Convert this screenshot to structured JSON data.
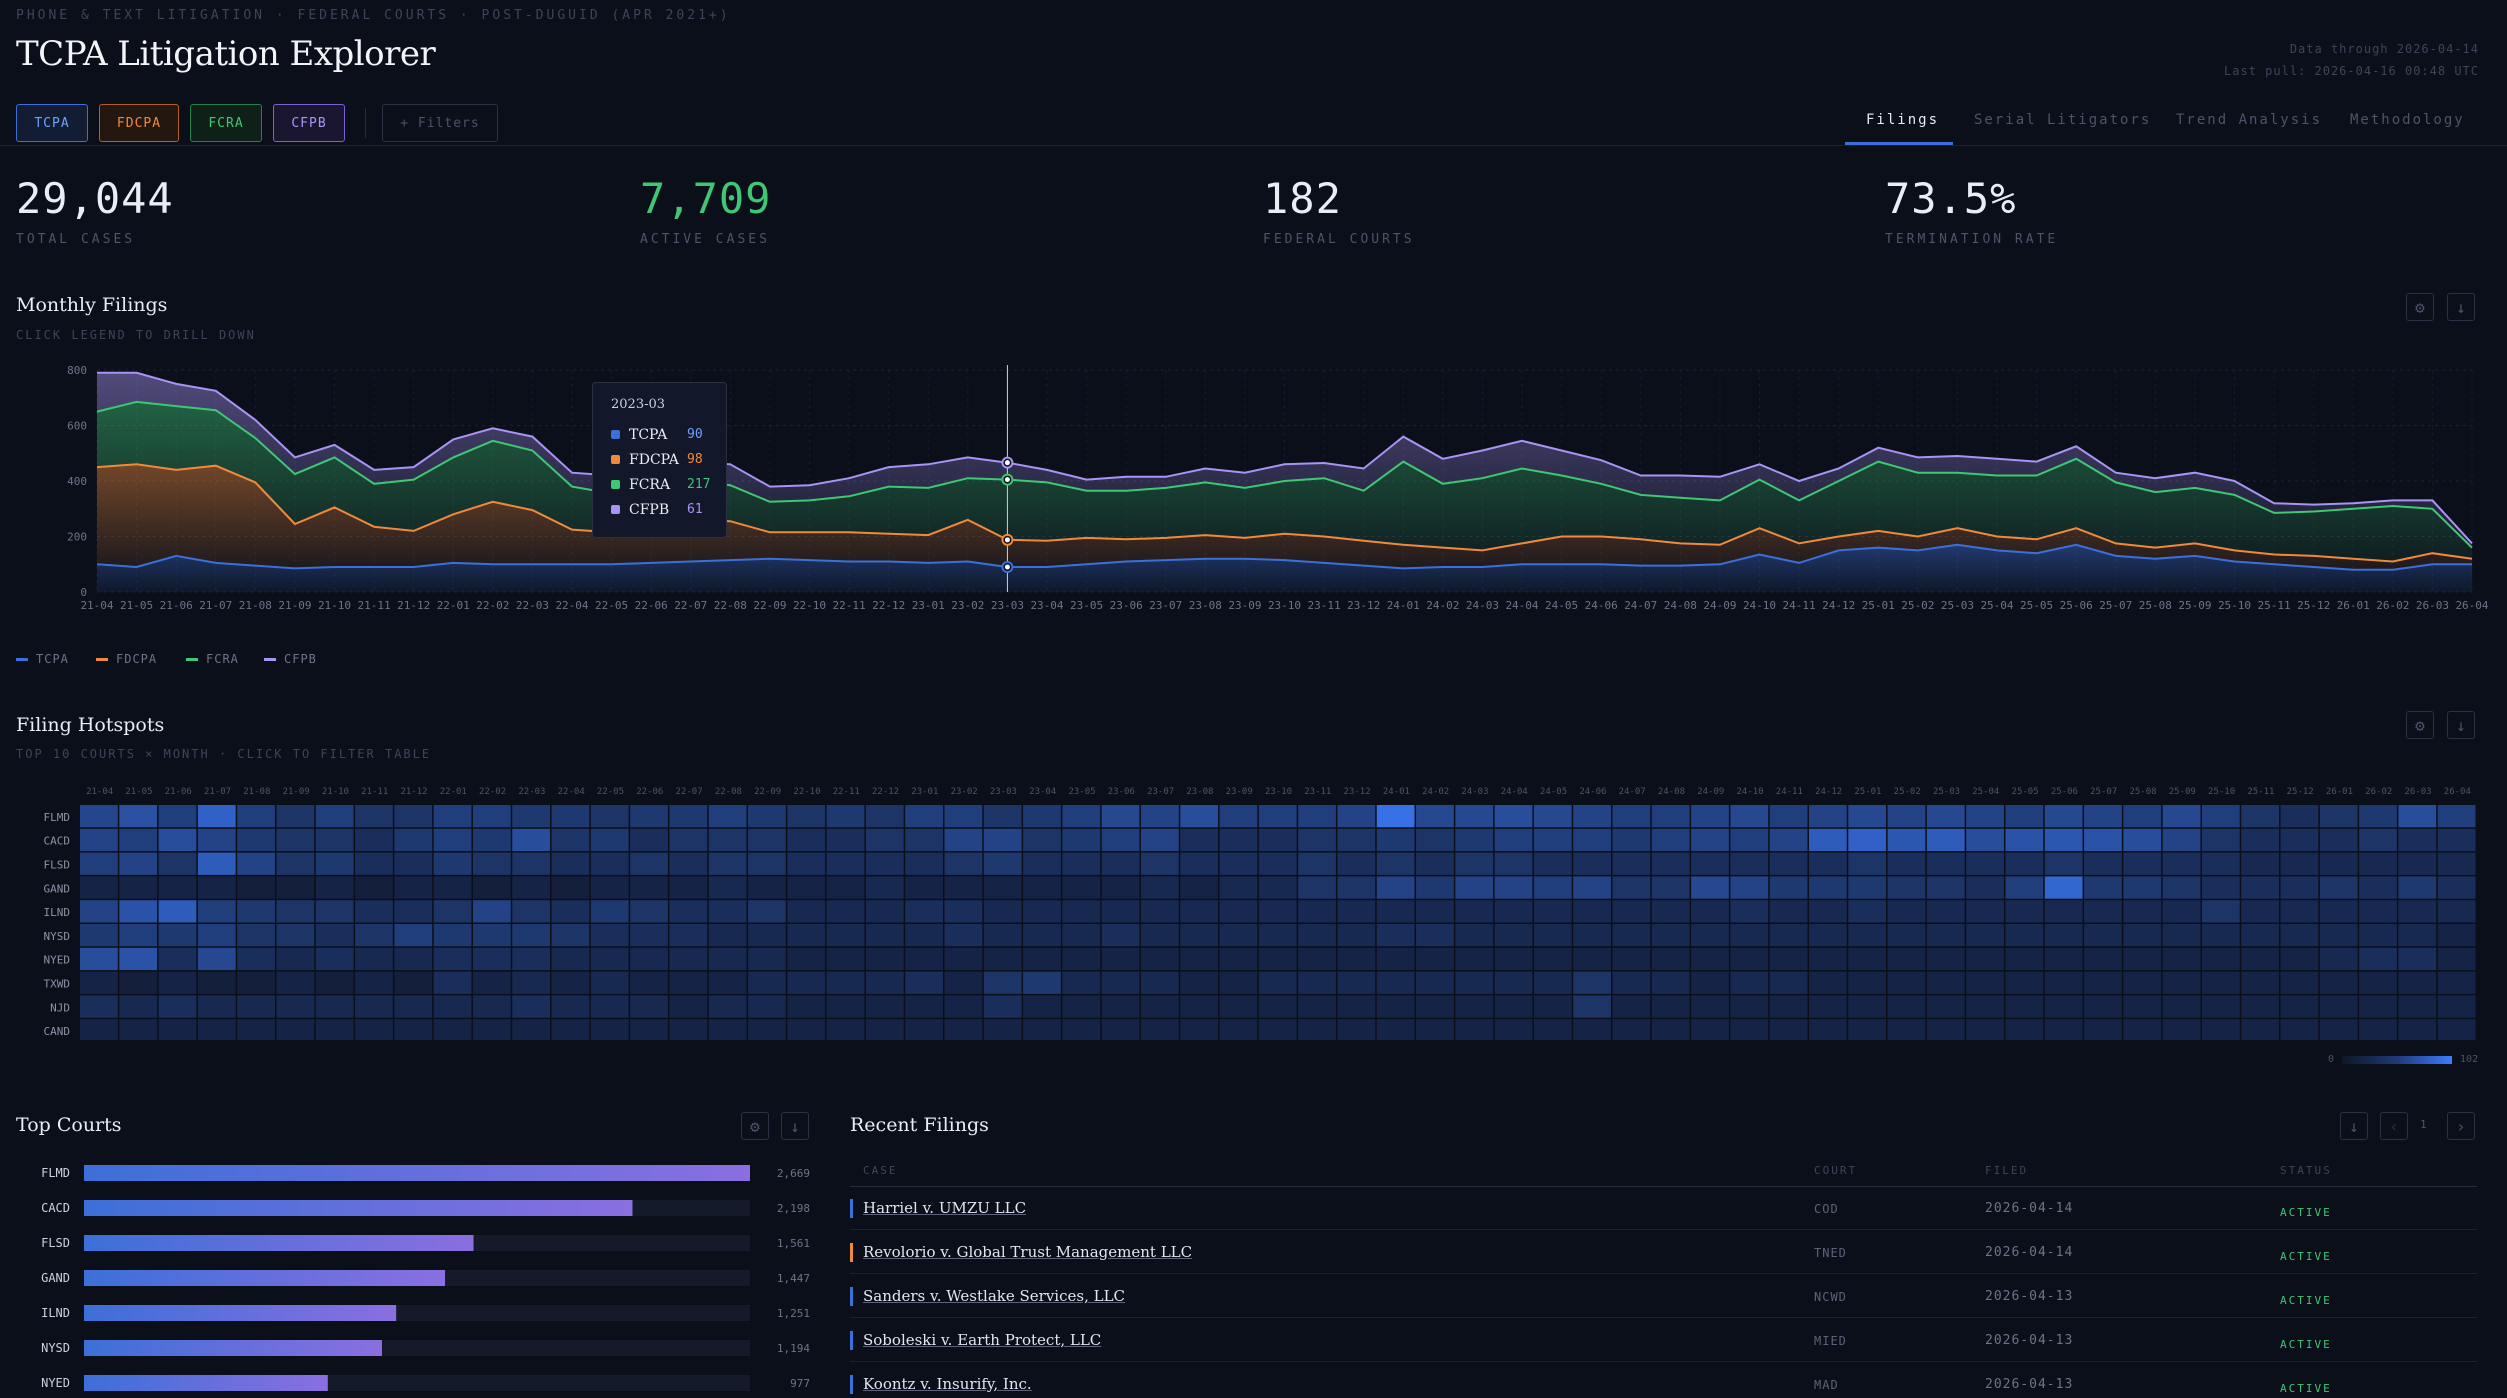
{
  "header": {
    "breadcrumb": "PHONE & TEXT LITIGATION · FEDERAL COURTS · POST-DUGUID (APR 2021+)",
    "title": "TCPA Litigation Explorer",
    "data_through": "Data through 2026-04-14",
    "last_pull": "Last pull: 2026-04-16 00:48 UTC"
  },
  "chips": [
    {
      "label": "TCPA",
      "color": "#3d6fd8"
    },
    {
      "label": "FDCPA",
      "color": "#f08a3b"
    },
    {
      "label": "FCRA",
      "color": "#3ec774"
    },
    {
      "label": "CFPB",
      "color": "#a894f5"
    }
  ],
  "filters_label": "+ Filters",
  "tabs": [
    "Filings",
    "Serial Litigators",
    "Trend Analysis",
    "Methodology"
  ],
  "active_tab": "Filings",
  "kpis": [
    {
      "value": "29,044",
      "label": "TOTAL CASES"
    },
    {
      "value": "7,709",
      "label": "ACTIVE CASES"
    },
    {
      "value": "182",
      "label": "FEDERAL COURTS"
    },
    {
      "value": "73.5%",
      "label": "TERMINATION RATE"
    }
  ],
  "monthly": {
    "title": "Monthly Filings",
    "subtitle": "CLICK LEGEND TO DRILL DOWN",
    "tooltip": {
      "period": "2023-03",
      "rows": [
        {
          "name": "TCPA",
          "value": "90"
        },
        {
          "name": "FDCPA",
          "value": "98"
        },
        {
          "name": "FCRA",
          "value": "217"
        },
        {
          "name": "CFPB",
          "value": "61"
        }
      ]
    },
    "legend": [
      "TCPA",
      "FDCPA",
      "FCRA",
      "CFPB"
    ]
  },
  "hotspots": {
    "title": "Filing Hotspots",
    "subtitle": "TOP 10 COURTS × MONTH · CLICK TO FILTER TABLE",
    "courts": [
      "FLMD",
      "CACD",
      "FLSD",
      "GAND",
      "ILND",
      "NYSD",
      "NYED",
      "TXWD",
      "NJD",
      "CAND"
    ],
    "scale_min": "0",
    "scale_max": "102"
  },
  "top_courts": {
    "title": "Top Courts",
    "rows": [
      {
        "court": "FLMD",
        "count": "2,669",
        "value": 2669
      },
      {
        "court": "CACD",
        "count": "2,198",
        "value": 2198
      },
      {
        "court": "FLSD",
        "count": "1,561",
        "value": 1561
      },
      {
        "court": "GAND",
        "count": "1,447",
        "value": 1447
      },
      {
        "court": "ILND",
        "count": "1,251",
        "value": 1251
      },
      {
        "court": "NYSD",
        "count": "1,194",
        "value": 1194
      },
      {
        "court": "NYED",
        "count": "977",
        "value": 977
      }
    ]
  },
  "recent": {
    "title": "Recent Filings",
    "page": "1",
    "columns": [
      "CASE",
      "COURT",
      "FILED",
      "STATUS"
    ],
    "rows": [
      {
        "case": "Harriel v. UMZU LLC",
        "court": "COD",
        "filed": "2026-04-14",
        "status": "ACTIVE"
      },
      {
        "case": "Revolorio v. Global Trust Management LLC",
        "court": "TNED",
        "filed": "2026-04-14",
        "status": "ACTIVE"
      },
      {
        "case": "Sanders v. Westlake Services, LLC",
        "court": "NCWD",
        "filed": "2026-04-13",
        "status": "ACTIVE"
      },
      {
        "case": "Soboleski v. Earth Protect, LLC",
        "court": "MIED",
        "filed": "2026-04-13",
        "status": "ACTIVE"
      },
      {
        "case": "Koontz v. Insurify, Inc.",
        "court": "MAD",
        "filed": "2026-04-13",
        "status": "ACTIVE"
      }
    ]
  },
  "chart_data": [
    {
      "type": "area",
      "title": "Monthly Filings",
      "stacked": true,
      "ylim": [
        0,
        800
      ],
      "yticks": [
        0,
        200,
        400,
        600,
        800
      ],
      "x": [
        "21-04",
        "21-05",
        "21-06",
        "21-07",
        "21-08",
        "21-09",
        "21-10",
        "21-11",
        "21-12",
        "22-01",
        "22-02",
        "22-03",
        "22-04",
        "22-05",
        "22-06",
        "22-07",
        "22-08",
        "22-09",
        "22-10",
        "22-11",
        "22-12",
        "23-01",
        "23-02",
        "23-03",
        "23-04",
        "23-05",
        "23-06",
        "23-07",
        "23-08",
        "23-09",
        "23-10",
        "23-11",
        "23-12",
        "24-01",
        "24-02",
        "24-03",
        "24-04",
        "24-05",
        "24-06",
        "24-07",
        "24-08",
        "24-09",
        "24-10",
        "24-11",
        "24-12",
        "25-01",
        "25-02",
        "25-03",
        "25-04",
        "25-05",
        "25-06",
        "25-07",
        "25-08",
        "25-09",
        "25-10",
        "25-11",
        "25-12",
        "26-01",
        "26-02",
        "26-03",
        "26-04"
      ],
      "series": [
        {
          "name": "TCPA",
          "color": "#3d6fd8",
          "values": [
            100,
            90,
            130,
            105,
            95,
            85,
            90,
            90,
            90,
            105,
            100,
            100,
            100,
            100,
            105,
            110,
            115,
            120,
            115,
            110,
            110,
            105,
            110,
            90,
            90,
            100,
            110,
            115,
            120,
            120,
            115,
            105,
            95,
            85,
            90,
            90,
            100,
            100,
            100,
            95,
            95,
            100,
            135,
            105,
            150,
            160,
            150,
            170,
            150,
            140,
            170,
            130,
            120,
            130,
            110,
            100,
            90,
            80,
            80,
            100,
            100
          ]
        },
        {
          "name": "FDCPA",
          "color": "#f08a3b",
          "values": [
            350,
            370,
            310,
            350,
            300,
            160,
            215,
            145,
            130,
            175,
            225,
            195,
            125,
            115,
            120,
            150,
            140,
            95,
            100,
            105,
            100,
            100,
            150,
            98,
            95,
            95,
            80,
            80,
            85,
            75,
            95,
            95,
            90,
            85,
            70,
            60,
            75,
            100,
            100,
            95,
            80,
            70,
            95,
            70,
            50,
            60,
            50,
            60,
            50,
            50,
            60,
            45,
            40,
            45,
            40,
            35,
            40,
            40,
            30,
            40,
            20
          ]
        },
        {
          "name": "FCRA",
          "color": "#3ec774",
          "values": [
            200,
            225,
            230,
            200,
            160,
            180,
            180,
            155,
            185,
            205,
            220,
            215,
            155,
            140,
            150,
            145,
            130,
            110,
            115,
            130,
            170,
            170,
            150,
            217,
            210,
            170,
            175,
            180,
            190,
            180,
            190,
            210,
            180,
            300,
            230,
            260,
            270,
            220,
            190,
            160,
            165,
            160,
            175,
            155,
            200,
            250,
            230,
            200,
            220,
            230,
            250,
            220,
            200,
            200,
            200,
            150,
            160,
            180,
            200,
            160,
            40
          ]
        },
        {
          "name": "CFPB",
          "color": "#a894f5",
          "values": [
            140,
            105,
            80,
            70,
            65,
            60,
            45,
            50,
            45,
            65,
            45,
            50,
            50,
            65,
            55,
            65,
            75,
            55,
            55,
            65,
            70,
            85,
            75,
            61,
            45,
            40,
            50,
            40,
            50,
            55,
            60,
            55,
            80,
            90,
            90,
            100,
            100,
            90,
            85,
            70,
            80,
            85,
            55,
            70,
            45,
            50,
            55,
            60,
            60,
            50,
            45,
            35,
            50,
            55,
            50,
            35,
            25,
            20,
            20,
            30,
            15
          ]
        }
      ]
    },
    {
      "type": "heatmap",
      "title": "Filing Hotspots",
      "rows": [
        "FLMD",
        "CACD",
        "FLSD",
        "GAND",
        "ILND",
        "NYSD",
        "NYED",
        "TXWD",
        "NJD",
        "CAND"
      ],
      "columns": [
        "21-04",
        "21-05",
        "21-06",
        "21-07",
        "21-08",
        "21-09",
        "21-10",
        "21-11",
        "21-12",
        "22-01",
        "22-02",
        "22-03",
        "22-04",
        "22-05",
        "22-06",
        "22-07",
        "22-08",
        "22-09",
        "22-10",
        "22-11",
        "22-12",
        "23-01",
        "23-02",
        "23-03",
        "23-04",
        "23-05",
        "23-06",
        "23-07",
        "23-08",
        "23-09",
        "23-10",
        "23-11",
        "23-12",
        "24-01",
        "24-02",
        "24-03",
        "24-04",
        "24-05",
        "24-06",
        "24-07",
        "24-08",
        "24-09",
        "24-10",
        "24-11",
        "24-12",
        "25-01",
        "25-02",
        "25-03",
        "25-04",
        "25-05",
        "25-06",
        "25-07",
        "25-08",
        "25-09",
        "25-10",
        "25-11",
        "25-12",
        "26-01",
        "26-02",
        "26-03",
        "26-04"
      ],
      "range": [
        0,
        102
      ],
      "values": [
        [
          48,
          58,
          40,
          75,
          40,
          30,
          40,
          30,
          30,
          40,
          40,
          35,
          35,
          30,
          35,
          35,
          40,
          35,
          30,
          35,
          30,
          40,
          40,
          30,
          35,
          40,
          50,
          45,
          55,
          40,
          40,
          40,
          45,
          90,
          50,
          50,
          55,
          50,
          45,
          40,
          40,
          45,
          50,
          40,
          45,
          50,
          45,
          50,
          45,
          40,
          50,
          45,
          40,
          50,
          40,
          30,
          25,
          30,
          35,
          55,
          40
        ],
        [
          45,
          40,
          55,
          45,
          35,
          30,
          30,
          25,
          35,
          40,
          35,
          55,
          30,
          35,
          25,
          30,
          30,
          30,
          25,
          25,
          30,
          30,
          45,
          45,
          30,
          35,
          40,
          45,
          25,
          25,
          25,
          30,
          30,
          35,
          30,
          35,
          40,
          40,
          40,
          35,
          40,
          45,
          40,
          45,
          70,
          75,
          65,
          70,
          55,
          60,
          65,
          60,
          55,
          45,
          30,
          25,
          25,
          25,
          30,
          25,
          25
        ],
        [
          40,
          45,
          30,
          70,
          45,
          30,
          35,
          25,
          25,
          35,
          30,
          30,
          25,
          25,
          30,
          25,
          30,
          30,
          25,
          25,
          25,
          25,
          30,
          35,
          25,
          25,
          25,
          30,
          25,
          25,
          25,
          30,
          25,
          30,
          25,
          30,
          30,
          25,
          25,
          25,
          25,
          25,
          25,
          25,
          25,
          30,
          25,
          25,
          25,
          25,
          30,
          25,
          25,
          25,
          25,
          20,
          20,
          20,
          20,
          20,
          20
        ],
        [
          15,
          15,
          15,
          15,
          10,
          10,
          15,
          10,
          15,
          15,
          10,
          15,
          10,
          15,
          15,
          15,
          20,
          15,
          15,
          15,
          20,
          15,
          15,
          15,
          15,
          15,
          15,
          20,
          15,
          20,
          20,
          30,
          30,
          45,
          35,
          45,
          45,
          40,
          45,
          30,
          30,
          50,
          45,
          35,
          35,
          35,
          30,
          30,
          25,
          40,
          80,
          35,
          35,
          30,
          25,
          25,
          25,
          30,
          25,
          35,
          25
        ],
        [
          45,
          60,
          70,
          40,
          35,
          30,
          30,
          25,
          25,
          30,
          45,
          30,
          25,
          35,
          30,
          25,
          25,
          30,
          20,
          20,
          20,
          25,
          25,
          20,
          20,
          20,
          20,
          20,
          20,
          20,
          20,
          20,
          20,
          20,
          20,
          20,
          20,
          20,
          20,
          20,
          20,
          20,
          25,
          20,
          20,
          25,
          20,
          20,
          20,
          20,
          20,
          20,
          20,
          20,
          30,
          20,
          20,
          20,
          20,
          20,
          20
        ],
        [
          35,
          40,
          35,
          40,
          30,
          30,
          25,
          30,
          40,
          35,
          35,
          35,
          30,
          25,
          25,
          25,
          20,
          20,
          20,
          20,
          20,
          20,
          25,
          20,
          20,
          20,
          25,
          20,
          20,
          20,
          20,
          20,
          20,
          25,
          25,
          20,
          20,
          20,
          20,
          20,
          20,
          20,
          20,
          20,
          20,
          20,
          20,
          20,
          20,
          20,
          20,
          20,
          20,
          20,
          20,
          20,
          20,
          20,
          20,
          20,
          15
        ],
        [
          55,
          60,
          25,
          50,
          25,
          20,
          25,
          20,
          20,
          25,
          25,
          25,
          20,
          20,
          20,
          20,
          20,
          20,
          15,
          15,
          15,
          15,
          15,
          15,
          15,
          15,
          15,
          15,
          15,
          15,
          15,
          15,
          15,
          15,
          15,
          15,
          15,
          15,
          15,
          15,
          15,
          15,
          15,
          15,
          15,
          15,
          15,
          15,
          15,
          15,
          15,
          15,
          15,
          15,
          15,
          15,
          15,
          20,
          25,
          25,
          15
        ],
        [
          15,
          10,
          15,
          10,
          10,
          15,
          10,
          15,
          10,
          25,
          15,
          20,
          15,
          20,
          15,
          15,
          15,
          20,
          20,
          20,
          20,
          25,
          15,
          30,
          35,
          20,
          20,
          20,
          15,
          15,
          20,
          20,
          20,
          20,
          20,
          20,
          20,
          20,
          30,
          20,
          20,
          15,
          20,
          20,
          15,
          15,
          15,
          15,
          15,
          15,
          15,
          15,
          15,
          15,
          15,
          15,
          15,
          15,
          15,
          15,
          15
        ],
        [
          25,
          20,
          25,
          20,
          20,
          20,
          20,
          20,
          20,
          20,
          20,
          25,
          20,
          20,
          20,
          15,
          20,
          20,
          15,
          15,
          15,
          15,
          15,
          25,
          15,
          15,
          15,
          15,
          15,
          15,
          15,
          15,
          15,
          15,
          15,
          15,
          15,
          15,
          30,
          15,
          15,
          15,
          15,
          15,
          15,
          15,
          15,
          15,
          15,
          15,
          15,
          15,
          15,
          15,
          15,
          15,
          15,
          15,
          15,
          15,
          15
        ],
        [
          15,
          15,
          15,
          15,
          15,
          15,
          15,
          15,
          15,
          15,
          15,
          15,
          15,
          15,
          15,
          15,
          15,
          15,
          15,
          15,
          15,
          15,
          15,
          15,
          15,
          15,
          15,
          15,
          15,
          15,
          15,
          15,
          15,
          15,
          15,
          15,
          15,
          15,
          15,
          15,
          15,
          15,
          15,
          15,
          15,
          15,
          15,
          15,
          15,
          15,
          15,
          15,
          15,
          15,
          15,
          15,
          15,
          15,
          15,
          15,
          15
        ]
      ]
    },
    {
      "type": "bar",
      "title": "Top Courts",
      "categories": [
        "FLMD",
        "CACD",
        "FLSD",
        "GAND",
        "ILND",
        "NYSD",
        "NYED"
      ],
      "values": [
        2669,
        2198,
        1561,
        1447,
        1251,
        1194,
        977
      ]
    }
  ],
  "colors": {
    "tcpa": "#3d6fd8",
    "fdcpa": "#f08a3b",
    "fcra": "#3ec774",
    "cfpb": "#a894f5",
    "active": "#3ec774"
  },
  "icons": [
    "settings-icon",
    "download-icon",
    "chevron-left-icon",
    "chevron-right-icon"
  ]
}
